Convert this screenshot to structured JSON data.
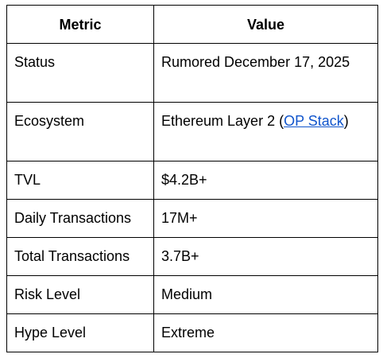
{
  "table": {
    "headers": [
      "Metric",
      "Value"
    ],
    "rows": [
      {
        "metric": "Status",
        "value": "Rumored December 17, 2025"
      },
      {
        "metric": "Ecosystem",
        "value_prefix": "Ethereum Layer 2 (",
        "value_link": "OP Stack",
        "value_suffix": ")"
      },
      {
        "metric": "TVL",
        "value": "$4.2B+"
      },
      {
        "metric": "Daily Transactions",
        "value": "17M+"
      },
      {
        "metric": "Total Transactions",
        "value": "3.7B+"
      },
      {
        "metric": "Risk Level",
        "value": "Medium"
      },
      {
        "metric": "Hype Level",
        "value": "Extreme"
      }
    ]
  },
  "colors": {
    "link": "#1155cc",
    "border": "#000000"
  }
}
